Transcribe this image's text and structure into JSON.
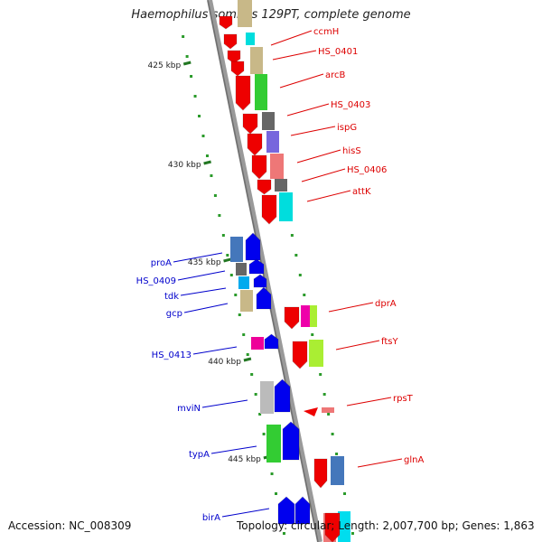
{
  "title": "Haemophilus somnus 129PT, complete genome",
  "footer": {
    "accession": "Accession: NC_008309",
    "topology": "Topology: circular; Length: 2,007,700 bp; Genes: 1,863"
  },
  "ticks": [
    {
      "label": "425 kbp"
    },
    {
      "label": "430 kbp"
    },
    {
      "label": "435 kbp"
    },
    {
      "label": "440 kbp"
    },
    {
      "label": "445 kbp"
    }
  ],
  "genes": [
    {
      "name": "ccmH",
      "strand": "forward",
      "color": "#dd0000"
    },
    {
      "name": "HS_0401",
      "strand": "forward",
      "color": "#dd0000"
    },
    {
      "name": "arcB",
      "strand": "forward",
      "color": "#dd0000"
    },
    {
      "name": "HS_0403",
      "strand": "forward",
      "color": "#dd0000"
    },
    {
      "name": "ispG",
      "strand": "forward",
      "color": "#dd0000"
    },
    {
      "name": "hisS",
      "strand": "forward",
      "color": "#dd0000"
    },
    {
      "name": "HS_0406",
      "strand": "forward",
      "color": "#dd0000"
    },
    {
      "name": "attK",
      "strand": "forward",
      "color": "#dd0000"
    },
    {
      "name": "proA",
      "strand": "reverse",
      "color": "#0000cc"
    },
    {
      "name": "HS_0409",
      "strand": "reverse",
      "color": "#0000cc"
    },
    {
      "name": "tdk",
      "strand": "reverse",
      "color": "#0000cc"
    },
    {
      "name": "gcp",
      "strand": "reverse",
      "color": "#0000cc"
    },
    {
      "name": "dprA",
      "strand": "forward",
      "color": "#dd0000"
    },
    {
      "name": "ftsY",
      "strand": "forward",
      "color": "#dd0000"
    },
    {
      "name": "HS_0413",
      "strand": "reverse",
      "color": "#0000cc"
    },
    {
      "name": "mviN",
      "strand": "reverse",
      "color": "#0000cc"
    },
    {
      "name": "rpsT",
      "strand": "forward",
      "color": "#dd0000"
    },
    {
      "name": "typA",
      "strand": "reverse",
      "color": "#0000cc"
    },
    {
      "name": "glnA",
      "strand": "forward",
      "color": "#dd0000"
    },
    {
      "name": "birA",
      "strand": "reverse",
      "color": "#0000cc"
    }
  ]
}
